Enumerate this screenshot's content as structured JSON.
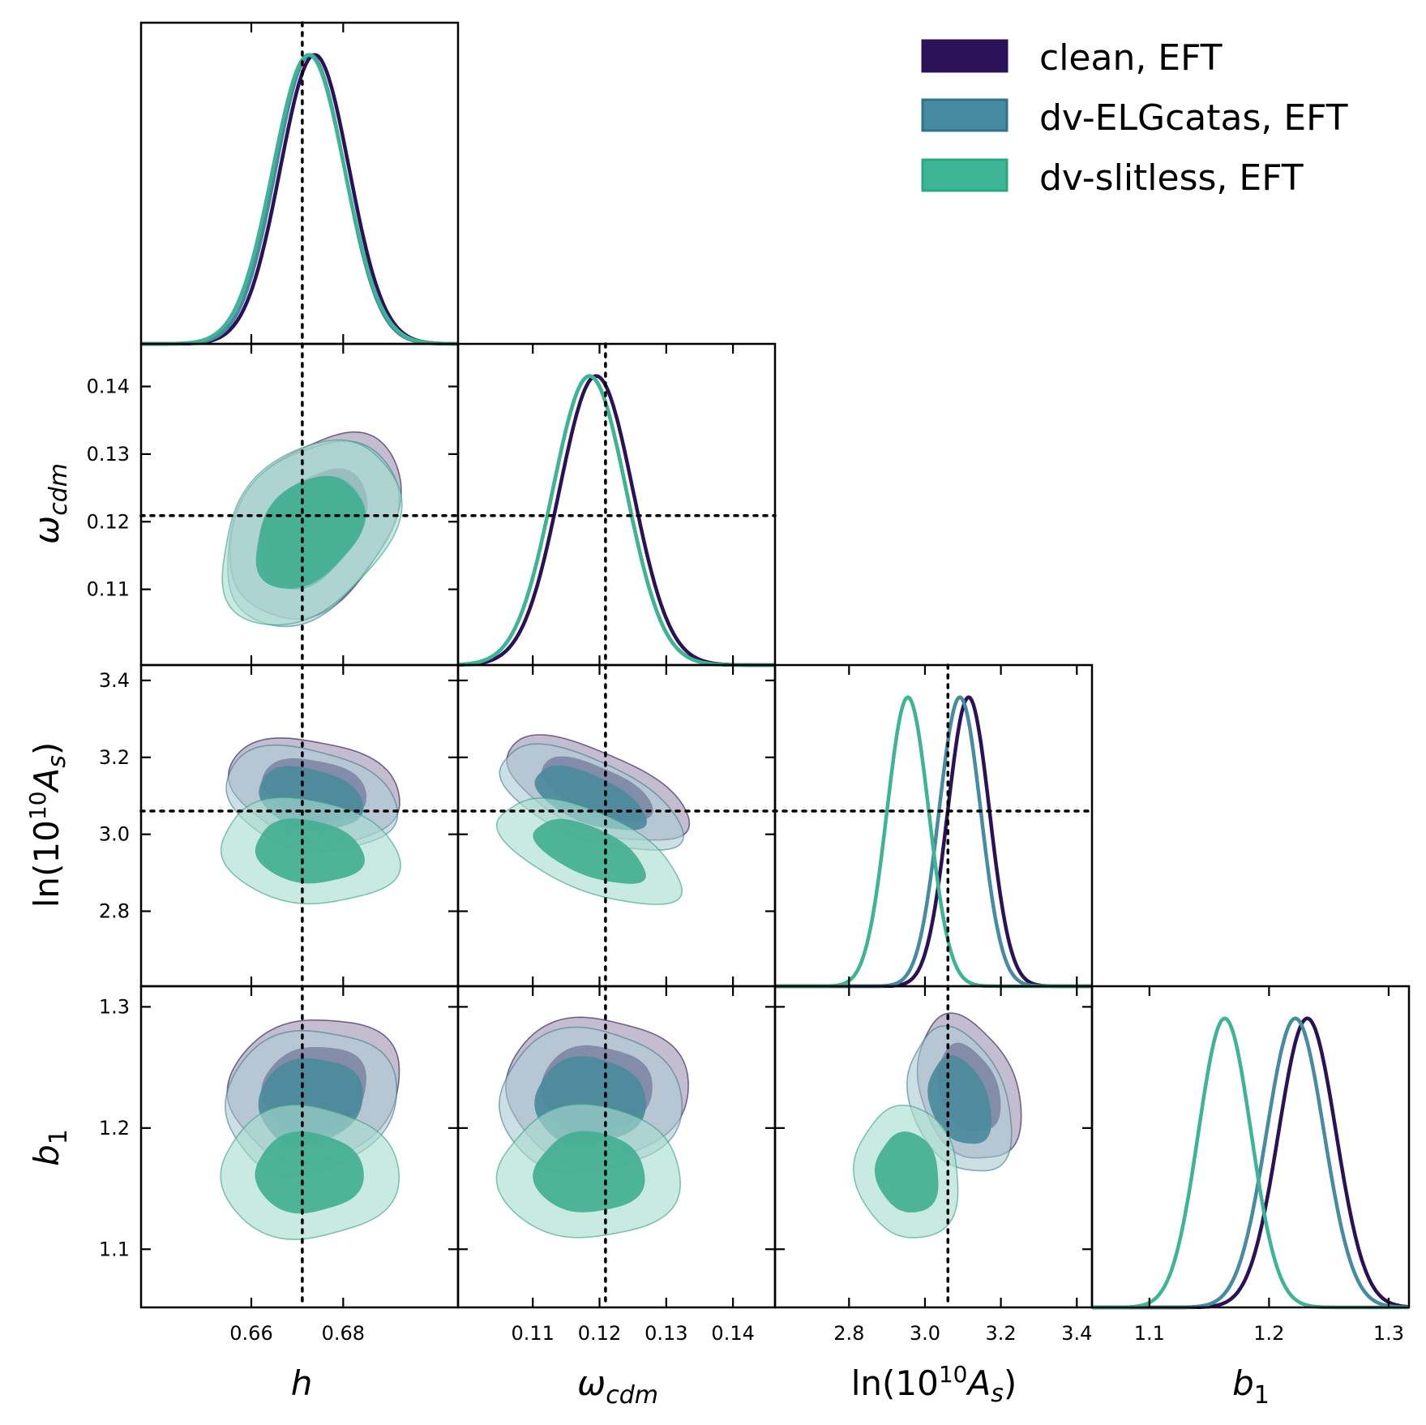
{
  "figure_title": "",
  "legend": [
    {
      "label": "clean, EFT",
      "color": "#2b1157"
    },
    {
      "label": "dv-ELGcatas, EFT",
      "color": "#468b9f"
    },
    {
      "label": "dv-slitless, EFT",
      "color": "#3db494"
    }
  ],
  "axis_labels": {
    "h": "h",
    "wcdm_main": "ω",
    "wcdm_sub": "cdm",
    "lnAs_pre": "ln(10",
    "lnAs_sup": "10",
    "lnAs_A": "A",
    "lnAs_sub": "s",
    "lnAs_post": ")",
    "b1_main": "b",
    "b1_sub": "1"
  },
  "chart_data": {
    "type": "corner",
    "parameters": [
      {
        "name": "h",
        "range": [
          0.636,
          0.705
        ],
        "ticks": [
          "0.66",
          "0.68"
        ],
        "tick_values": [
          0.66,
          0.68
        ],
        "truth": 0.6711
      },
      {
        "name": "omega_cdm",
        "range": [
          0.0988,
          0.1463
        ],
        "ticks": [
          "0.11",
          "0.12",
          "0.13",
          "0.14"
        ],
        "tick_values": [
          0.11,
          0.12,
          0.13,
          0.14
        ],
        "truth": 0.1209
      },
      {
        "name": "ln(10^10 A_s)",
        "range": [
          2.605,
          3.44
        ],
        "ticks": [
          "2.8",
          "3.0",
          "3.2",
          "3.4"
        ],
        "tick_values": [
          2.8,
          3.0,
          3.2,
          3.4
        ],
        "truth": 3.0605
      },
      {
        "name": "b1",
        "range": [
          1.052,
          1.317
        ],
        "ticks": [
          "1.1",
          "1.2",
          "1.3"
        ],
        "tick_values": [
          1.1,
          1.2,
          1.3
        ],
        "truth": null
      }
    ],
    "series": [
      {
        "name": "clean, EFT",
        "color": "#2b1157",
        "mean": [
          0.6738,
          0.1195,
          3.115,
          1.232
        ],
        "sigma": [
          0.0075,
          0.0055,
          0.055,
          0.024
        ],
        "corr": {
          "1,0": 0.35,
          "2,0": -0.25,
          "2,1": -0.6,
          "3,0": 0.1,
          "3,1": 0.0,
          "3,2": -0.3
        }
      },
      {
        "name": "dv-ELGcatas, EFT",
        "color": "#468b9f",
        "mean": [
          0.6728,
          0.1185,
          3.092,
          1.222
        ],
        "sigma": [
          0.0075,
          0.0055,
          0.055,
          0.024
        ],
        "corr": {
          "1,0": 0.35,
          "2,0": -0.25,
          "2,1": -0.6,
          "3,0": 0.1,
          "3,1": 0.0,
          "3,2": -0.3
        }
      },
      {
        "name": "dv-slitless, EFT",
        "color": "#3db494",
        "mean": [
          0.6725,
          0.1185,
          2.955,
          1.163
        ],
        "sigma": [
          0.0078,
          0.0055,
          0.055,
          0.022
        ],
        "corr": {
          "1,0": 0.35,
          "2,0": -0.15,
          "2,1": -0.6,
          "3,0": 0.0,
          "3,1": 0.0,
          "3,2": -0.1
        }
      }
    ],
    "contour_levels": [
      "68%",
      "95%"
    ],
    "xlabels": [
      "h",
      "ω_cdm",
      "ln(10^10 A_s)",
      "b_1"
    ],
    "ylabels": [
      "",
      "ω_cdm",
      "ln(10^10 A_s)",
      "b_1"
    ]
  }
}
